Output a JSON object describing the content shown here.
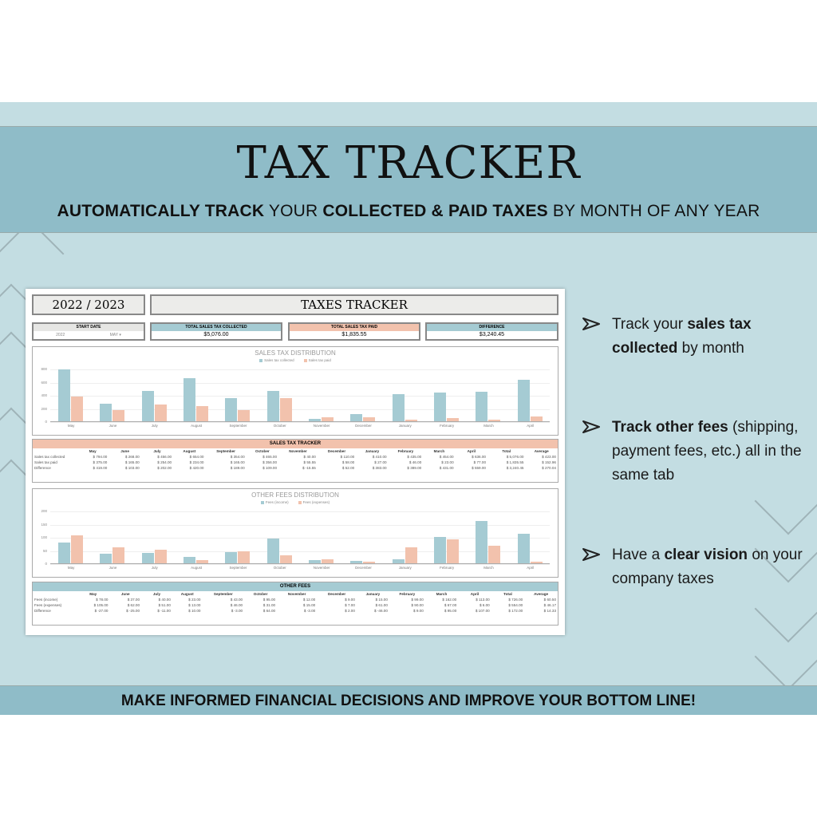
{
  "banner": {
    "title": "TAX TRACKER",
    "subtitle_parts": [
      {
        "text": "AUTOMATICALLY TRACK",
        "bold": true
      },
      {
        "text": " YOUR ",
        "bold": false
      },
      {
        "text": "COLLECTED & PAID TAXES",
        "bold": true
      },
      {
        "text": " BY MONTH OF ANY YEAR",
        "bold": false
      }
    ],
    "footer": "MAKE INFORMED FINANCIAL DECISIONS AND IMPROVE YOUR BOTTOM LINE!"
  },
  "colors": {
    "teal": "#a5cbd3",
    "peach": "#f2c2ad",
    "header_band": "#8fbcc8",
    "background": "#c3dde2"
  },
  "sheet": {
    "year": "2022 / 2023",
    "title": "TAXES TRACKER",
    "start_date": {
      "label": "START DATE",
      "year": "2022",
      "month": "MAY"
    },
    "kpis": [
      {
        "label": "TOTAL SALES TAX COLLECTED",
        "value": "$5,076.00",
        "color": "#a5cbd3"
      },
      {
        "label": "TOTAL SALES TAX PAID",
        "value": "$1,835.55",
        "color": "#f2c2ad"
      },
      {
        "label": "DIFFERENCE",
        "value": "$3,240.45",
        "color": "#a5cbd3"
      }
    ],
    "sales_table": {
      "title": "SALES TAX TRACKER",
      "columns": [
        "May",
        "June",
        "July",
        "August",
        "September",
        "October",
        "November",
        "December",
        "January",
        "February",
        "March",
        "April",
        "Total",
        "Average"
      ],
      "rows": [
        {
          "label": "Sales tax collected",
          "values": [
            "794.00",
            "268.00",
            "456.00",
            "654.00",
            "354.00",
            "465.00",
            "40.00",
            "110.00",
            "410.00",
            "435.00",
            "454.00",
            "636.00",
            "5,076.00",
            "423.00"
          ]
        },
        {
          "label": "Sales tax paid",
          "values": [
            "375.00",
            "165.00",
            "254.00",
            "234.00",
            "165.00",
            "356.00",
            "55.55",
            "58.00",
            "27.00",
            "46.00",
            "23.00",
            "77.00",
            "1,835.55",
            "152.96"
          ]
        },
        {
          "label": "Difference",
          "values": [
            "419.00",
            "103.00",
            "202.00",
            "420.00",
            "189.00",
            "109.00",
            "-15.55",
            "52.00",
            "383.00",
            "389.00",
            "431.00",
            "559.00",
            "3,240.45",
            "270.04"
          ]
        }
      ]
    },
    "fees_table": {
      "title": "OTHER FEES",
      "columns": [
        "May",
        "June",
        "July",
        "August",
        "September",
        "October",
        "November",
        "December",
        "January",
        "February",
        "March",
        "April",
        "Total",
        "Average"
      ],
      "rows": [
        {
          "label": "Fees (income)",
          "values": [
            "78.00",
            "37.00",
            "40.00",
            "23.00",
            "43.00",
            "95.00",
            "12.00",
            "9.00",
            "15.00",
            "99.00",
            "162.00",
            "113.00",
            "726.00",
            "60.50"
          ]
        },
        {
          "label": "Fees (expenses)",
          "values": [
            "105.00",
            "62.00",
            "51.00",
            "13.00",
            "46.00",
            "31.00",
            "15.00",
            "7.00",
            "61.00",
            "90.00",
            "67.00",
            "6.00",
            "554.00",
            "46.17"
          ]
        },
        {
          "label": "Difference",
          "values": [
            "-27.00",
            "-25.00",
            "-11.00",
            "10.00",
            "-3.00",
            "64.00",
            "-3.00",
            "2.00",
            "-46.00",
            "9.00",
            "95.00",
            "107.00",
            "172.00",
            "14.33"
          ]
        }
      ]
    }
  },
  "bullets": [
    {
      "parts": [
        {
          "text": "Track your ",
          "bold": false
        },
        {
          "text": "sales tax collected",
          "bold": true
        },
        {
          "text": " by month",
          "bold": false
        }
      ]
    },
    {
      "parts": [
        {
          "text": "Track other fees",
          "bold": true
        },
        {
          "text": " (shipping, payment fees, etc.) all in the same tab",
          "bold": false
        }
      ]
    },
    {
      "parts": [
        {
          "text": "Have a ",
          "bold": false
        },
        {
          "text": "clear vision",
          "bold": true
        },
        {
          "text": " on your company taxes",
          "bold": false
        }
      ]
    }
  ],
  "chart_data": [
    {
      "type": "bar",
      "title": "SALES TAX DISTRIBUTION",
      "categories": [
        "May",
        "June",
        "July",
        "August",
        "September",
        "October",
        "November",
        "December",
        "January",
        "February",
        "March",
        "April"
      ],
      "series": [
        {
          "name": "Sales tax collected",
          "color": "#a5cbd3",
          "values": [
            794,
            268,
            456,
            654,
            354,
            465,
            40,
            110,
            410,
            435,
            454,
            636
          ]
        },
        {
          "name": "Sales tax paid",
          "color": "#f2c2ad",
          "values": [
            375,
            165,
            254,
            234,
            165,
            356,
            55.55,
            58,
            27,
            46,
            23,
            77
          ]
        }
      ],
      "yticks": [
        0,
        200,
        400,
        600,
        800
      ],
      "ylim": [
        0,
        800
      ],
      "grid": true,
      "legend_position": "top"
    },
    {
      "type": "bar",
      "title": "OTHER FEES DISTRIBUTION",
      "categories": [
        "May",
        "June",
        "July",
        "August",
        "September",
        "October",
        "November",
        "December",
        "January",
        "February",
        "March",
        "April"
      ],
      "series": [
        {
          "name": "Fees (income)",
          "color": "#a5cbd3",
          "values": [
            78,
            37,
            40,
            23,
            43,
            95,
            12,
            9,
            15,
            99,
            162,
            113
          ]
        },
        {
          "name": "Fees (expenses)",
          "color": "#f2c2ad",
          "values": [
            105,
            62,
            51,
            13,
            46,
            31,
            15,
            7,
            61,
            90,
            67,
            6
          ]
        }
      ],
      "yticks": [
        0,
        50,
        100,
        150,
        200
      ],
      "ylim": [
        0,
        200
      ],
      "grid": true,
      "legend_position": "top"
    }
  ]
}
